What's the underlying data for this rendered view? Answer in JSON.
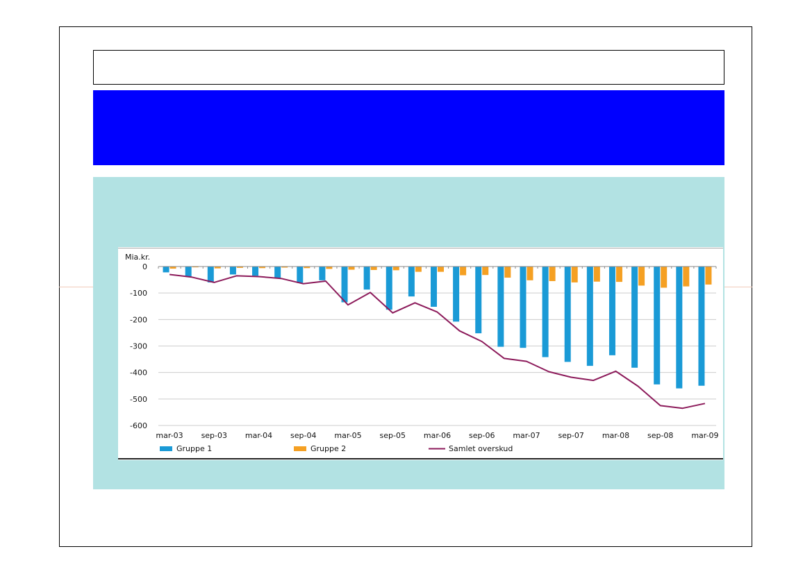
{
  "colors": {
    "gruppe1": "#1a9ad6",
    "gruppe2": "#f5a023",
    "samlet": "#8c1a5a",
    "banner": "#0000ff",
    "panel": "#b2e2e3"
  },
  "chart_data": {
    "type": "bar",
    "unit_label": "Mia.kr.",
    "ylim": [
      -600,
      0
    ],
    "yticks": [
      0,
      -100,
      -200,
      -300,
      -400,
      -500,
      -600
    ],
    "ytick_labels": [
      "0",
      "-100",
      "-200",
      "-300",
      "-400",
      "-500",
      "-600"
    ],
    "x_tick_labels": [
      "mar-03",
      "sep-03",
      "mar-04",
      "sep-04",
      "mar-05",
      "sep-05",
      "mar-06",
      "sep-06",
      "mar-07",
      "sep-07",
      "mar-08",
      "sep-08",
      "mar-09"
    ],
    "x_tick_every": 2,
    "n_periods": 25,
    "grid": true,
    "legend_position": "bottom",
    "series": [
      {
        "name": "Gruppe 1",
        "kind": "bar",
        "values": [
          -22,
          -37,
          -60,
          -30,
          -35,
          -45,
          -62,
          -52,
          -135,
          -87,
          -163,
          -113,
          -152,
          -208,
          -252,
          -303,
          -307,
          -342,
          -360,
          -375,
          -335,
          -382,
          -445,
          -460,
          -450
        ]
      },
      {
        "name": "Gruppe 2",
        "kind": "bar",
        "values": [
          -8,
          -3,
          -7,
          -5,
          -6,
          -4,
          -6,
          -9,
          -12,
          -13,
          -14,
          -20,
          -20,
          -33,
          -32,
          -42,
          -52,
          -55,
          -60,
          -57,
          -58,
          -72,
          -80,
          -75,
          -68
        ]
      },
      {
        "name": "Samlet overskud",
        "kind": "line",
        "values": [
          -30,
          -40,
          -60,
          -35,
          -38,
          -45,
          -65,
          -55,
          -145,
          -98,
          -175,
          -137,
          -172,
          -243,
          -283,
          -347,
          -358,
          -397,
          -418,
          -430,
          -395,
          -452,
          -525,
          -535,
          -517
        ]
      }
    ]
  }
}
